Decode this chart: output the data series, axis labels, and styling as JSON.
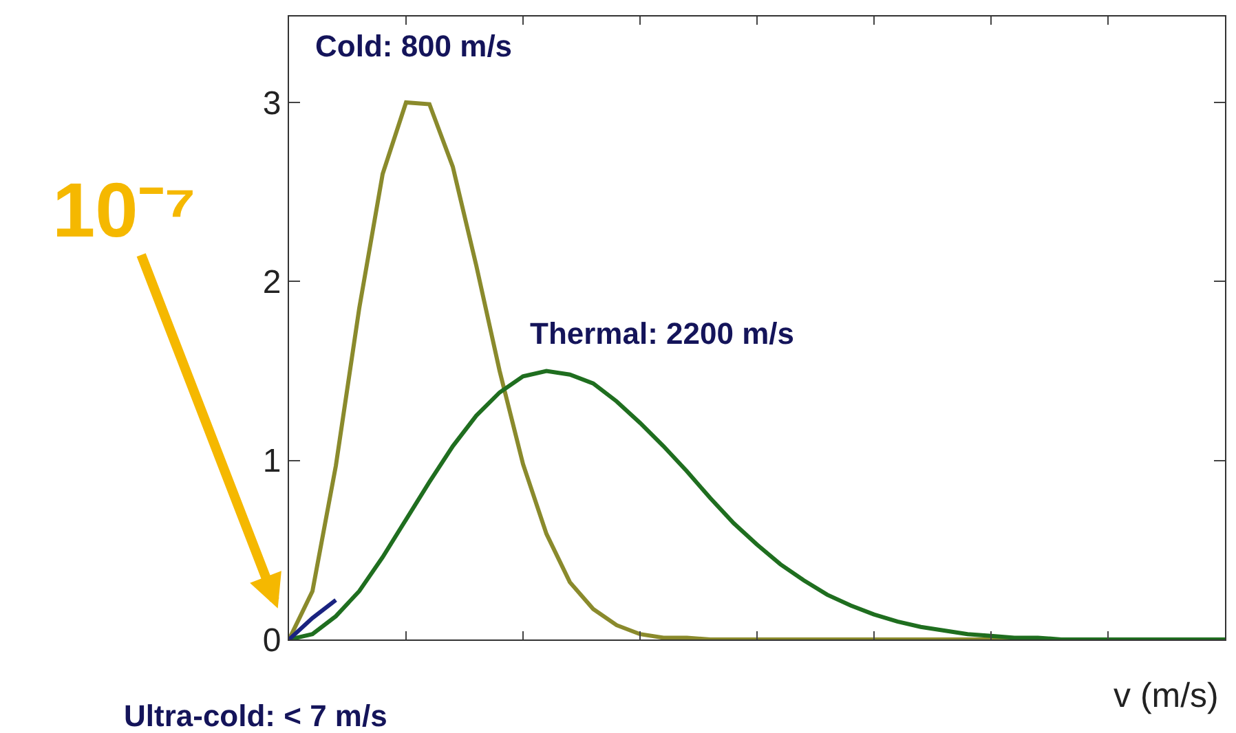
{
  "chart_data": {
    "type": "line",
    "xlabel": "v (m/s)",
    "categories": [
      null,
      null,
      null,
      null,
      null,
      null,
      null,
      null,
      null,
      null,
      null,
      null,
      null,
      null,
      null,
      null,
      null,
      null,
      null,
      null,
      null,
      null,
      null,
      null,
      null,
      null,
      null,
      null,
      null,
      null,
      null,
      null,
      null,
      null,
      null,
      null,
      null,
      null,
      null,
      null,
      null
    ],
    "series": [
      {
        "color": "#8a8a2c",
        "values": [
          0,
          0.27,
          0.97,
          1.85,
          2.6,
          3.0,
          2.99,
          2.64,
          2.09,
          1.5,
          0.98,
          0.59,
          0.32,
          0.17,
          0.08,
          0.03,
          0.01,
          0.01,
          0,
          0,
          0,
          0,
          0,
          0,
          0,
          0,
          0,
          0,
          0,
          0,
          0,
          0,
          0,
          null,
          null,
          null,
          null,
          null,
          null,
          null,
          null
        ]
      },
      {
        "color": "#1f6e1f",
        "values": [
          0,
          0.03,
          0.13,
          0.27,
          0.46,
          0.67,
          0.88,
          1.08,
          1.25,
          1.38,
          1.47,
          1.5,
          1.48,
          1.43,
          1.33,
          1.21,
          1.08,
          0.94,
          0.79,
          0.65,
          0.53,
          0.42,
          0.33,
          0.25,
          0.19,
          0.14,
          0.1,
          0.07,
          0.05,
          0.03,
          0.02,
          0.01,
          0.01,
          0,
          0,
          0,
          0,
          0,
          0,
          0,
          0
        ]
      },
      {
        "color": "#1a2380",
        "values": [
          0,
          0.12,
          0.22,
          null,
          null,
          null,
          null,
          null,
          null,
          null,
          null,
          null,
          null,
          null,
          null,
          null,
          null,
          null,
          null,
          null,
          null,
          null,
          null,
          null,
          null,
          null,
          null,
          null,
          null,
          null,
          null,
          null,
          null,
          null,
          null,
          null,
          null,
          null,
          null,
          null,
          null
        ]
      }
    ],
    "ylim": [
      0,
      3.48
    ],
    "yticks": [
      0,
      1,
      2,
      3
    ],
    "tick_labels": "y",
    "grid": false,
    "annotations": [
      "Cold: 800 m/s",
      "Thermal: 2200 m/s",
      "Ultra-cold: < 7 m/s",
      "10⁻⁷"
    ]
  }
}
